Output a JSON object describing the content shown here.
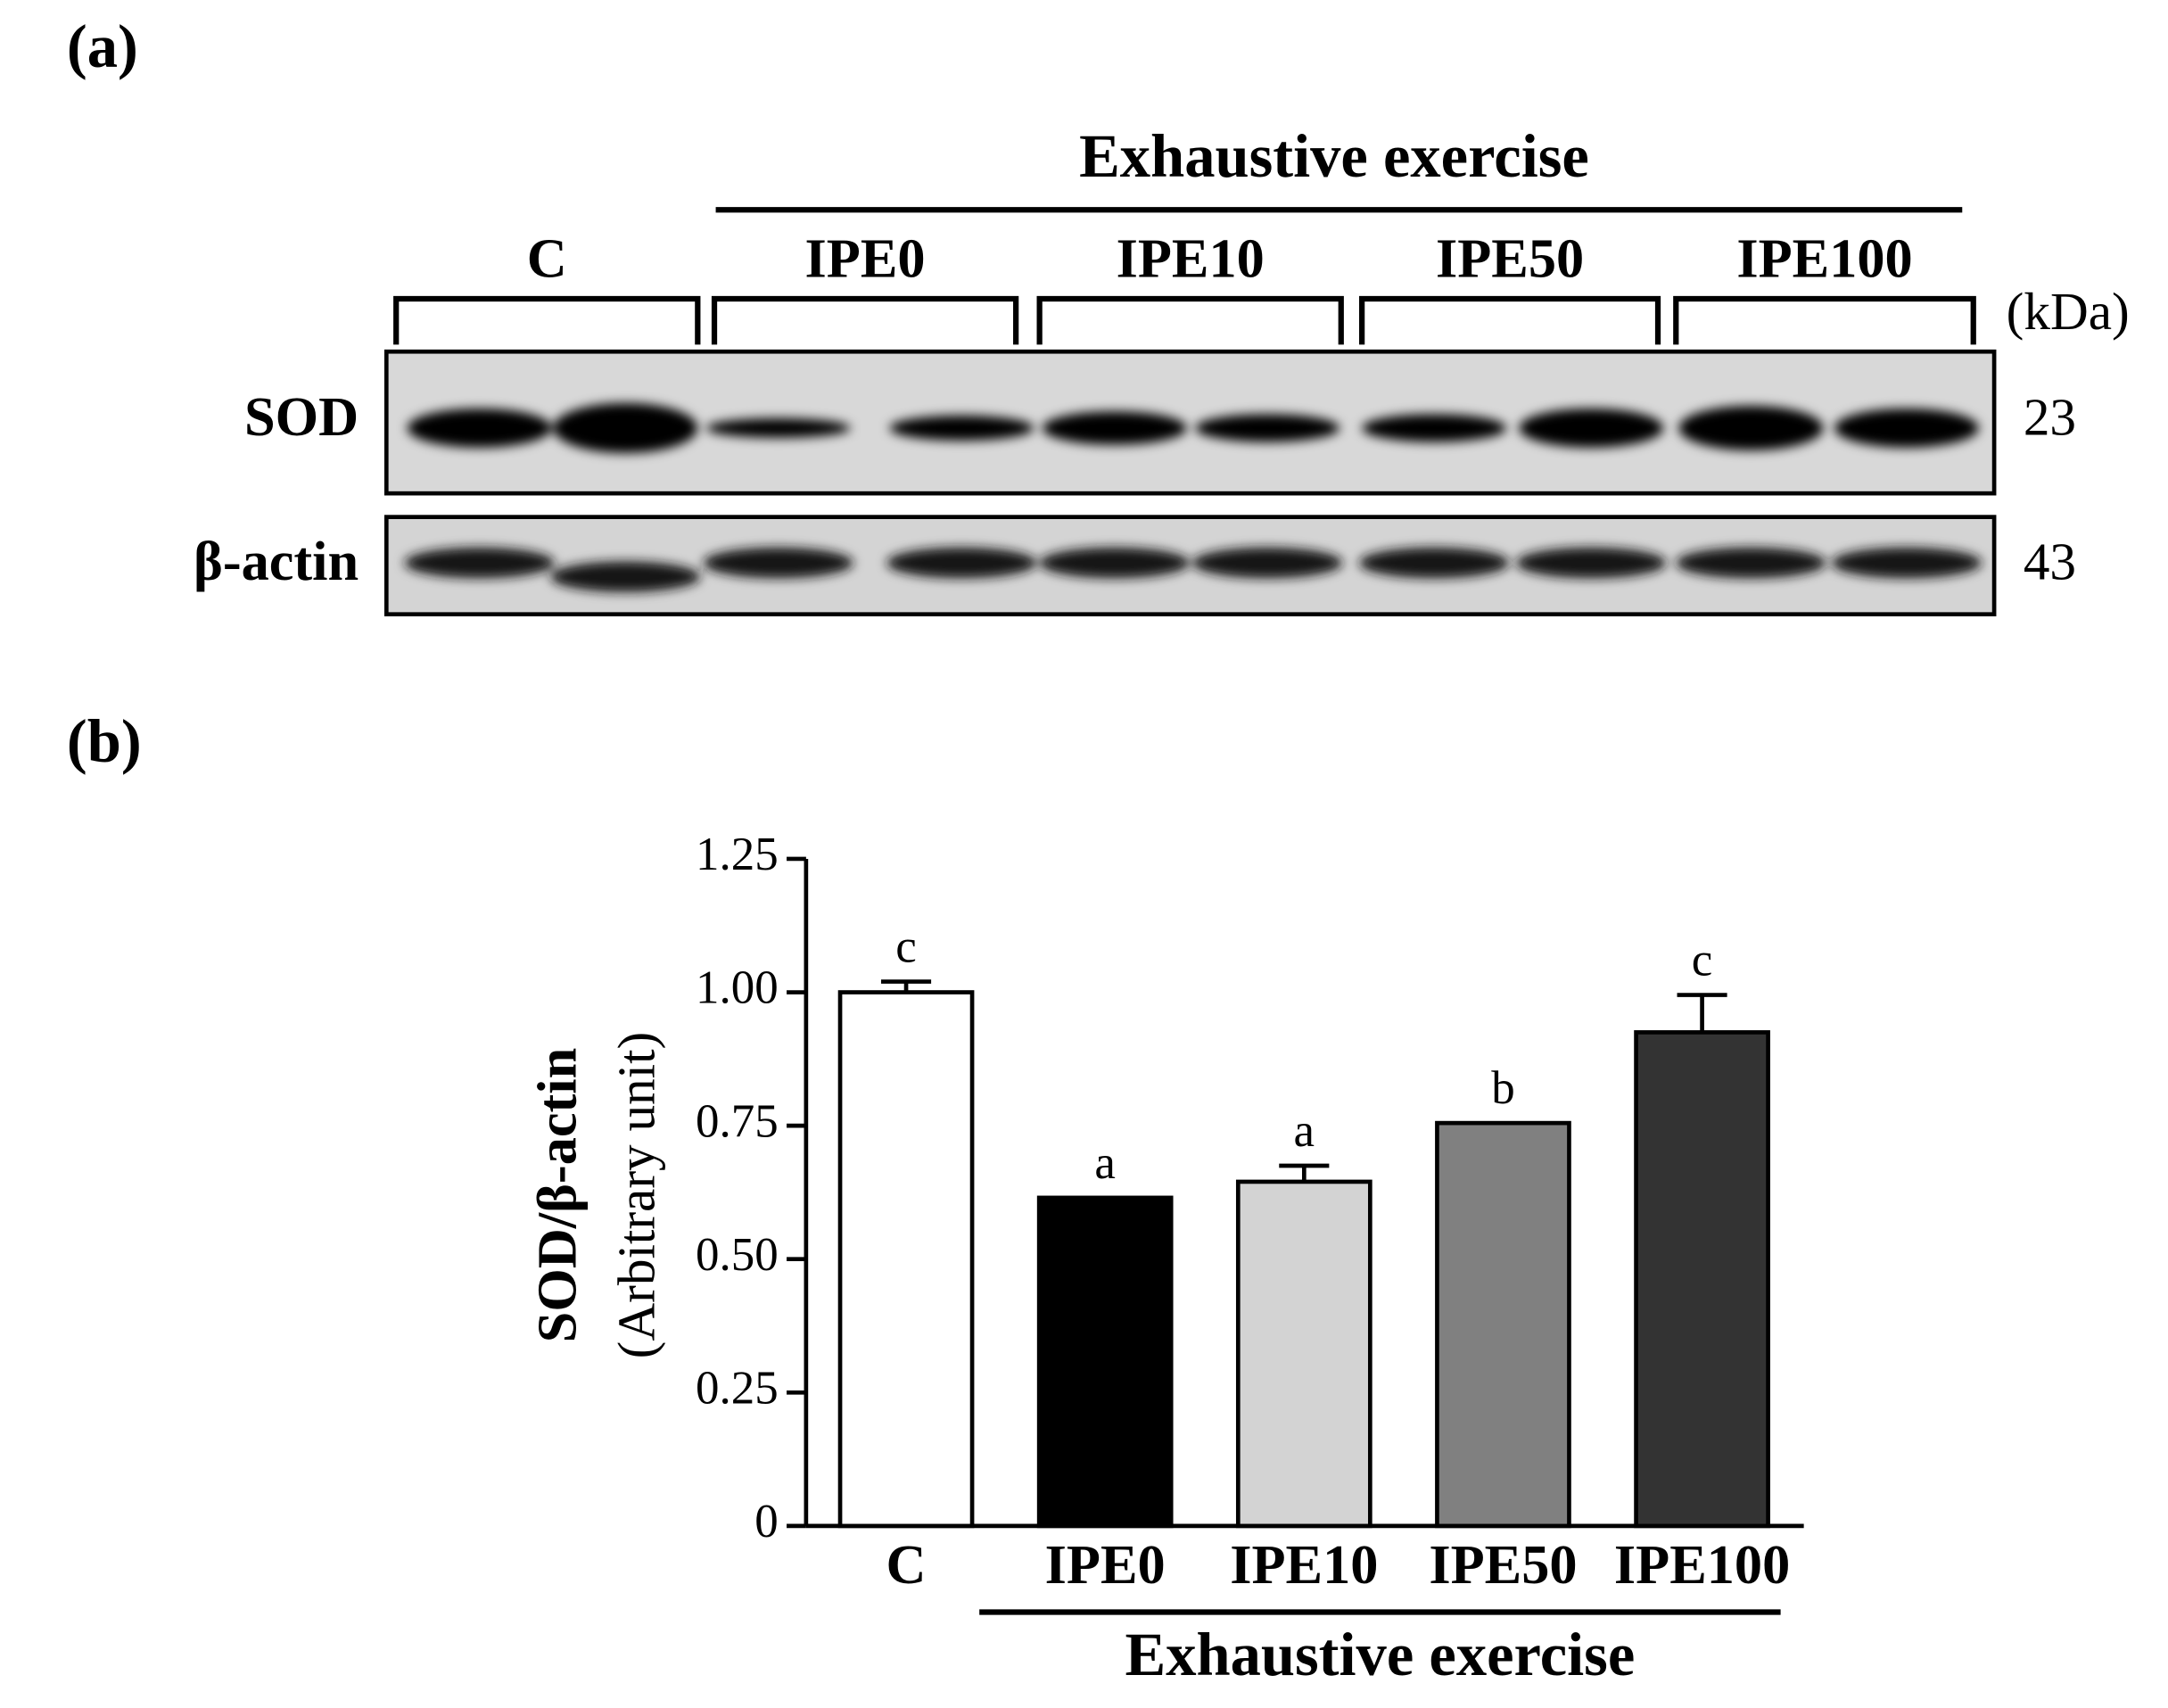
{
  "panel_a": {
    "label": "(a)",
    "group_label": "Exhaustive exercise",
    "lanes": [
      "C",
      "IPE0",
      "IPE10",
      "IPE50",
      "IPE100"
    ],
    "unit": "(kDa)",
    "rows": [
      {
        "name": "SOD",
        "kda": "23"
      },
      {
        "name": "β-actin",
        "kda": "43"
      }
    ]
  },
  "chart_data": {
    "type": "bar",
    "panel_label": "(b)",
    "ylabel": [
      "SOD/β-actin",
      "(Arbitrary unit)"
    ],
    "categories": [
      "C",
      "IPE0",
      "IPE10",
      "IPE50",
      "IPE100"
    ],
    "values": [
      1.0,
      0.615,
      0.645,
      0.755,
      0.925
    ],
    "errors": [
      0.02,
      0,
      0.03,
      0,
      0.07
    ],
    "annotations": [
      "c",
      "a",
      "a",
      "b",
      "c"
    ],
    "colors": [
      "#ffffff",
      "#000000",
      "#d3d3d3",
      "#808080",
      "#333333"
    ],
    "group_label": "Exhaustive exercise",
    "ylim": [
      0,
      1.25
    ],
    "yticks": [
      0,
      0.25,
      {
        "value": 0.5,
        "label": "0.50"
      },
      0.75,
      {
        "value": 1,
        "label": "1.00"
      },
      1.25
    ]
  }
}
